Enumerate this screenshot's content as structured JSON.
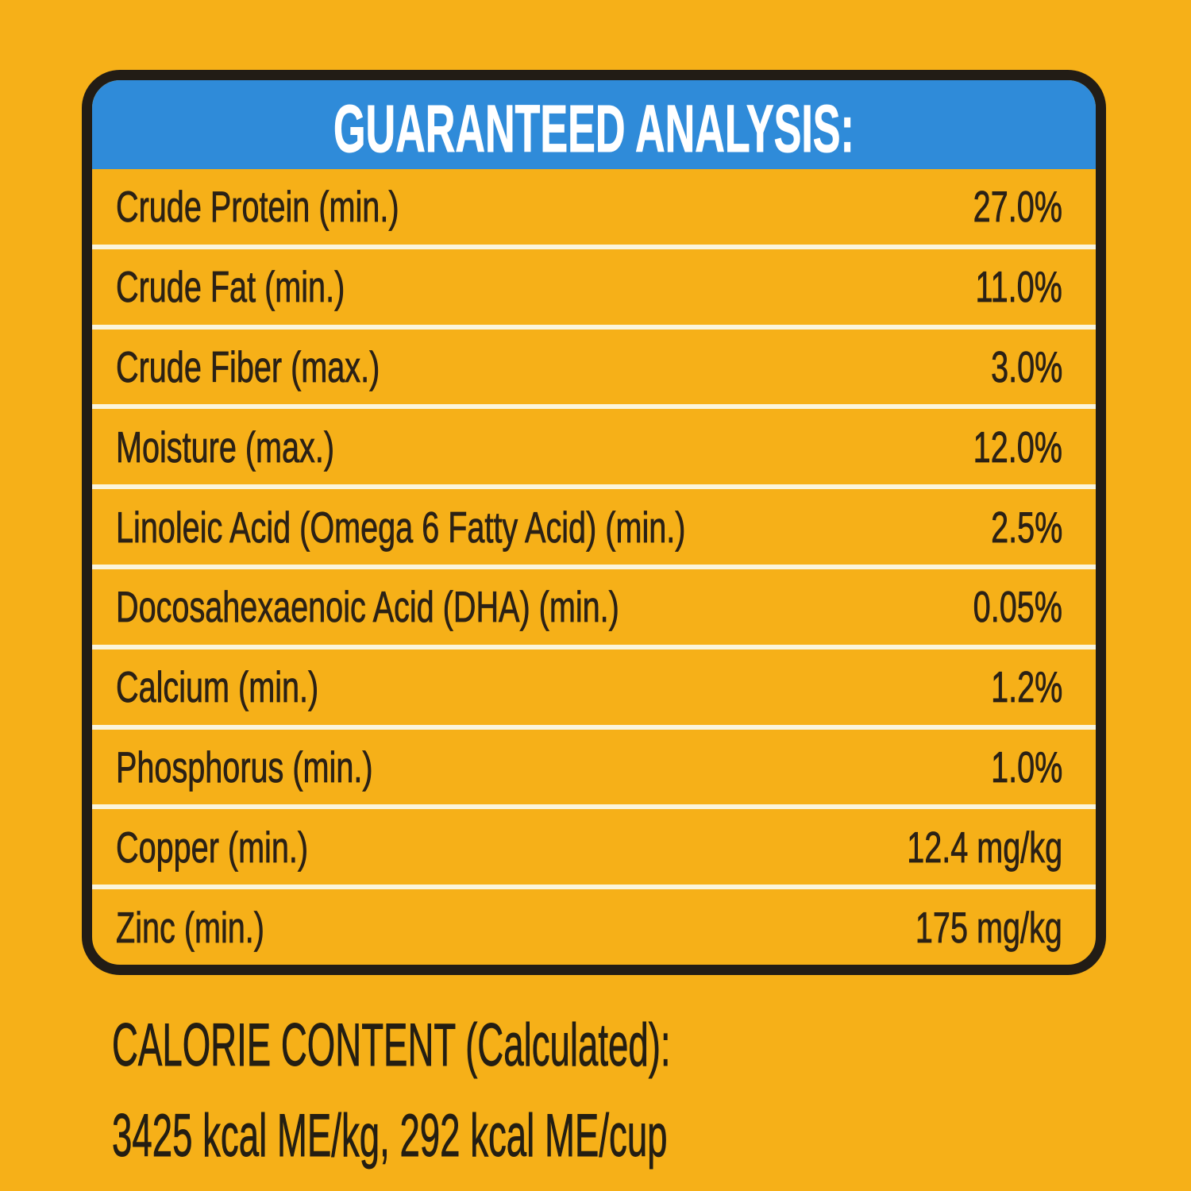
{
  "colors": {
    "background_yellow": "#F6B018",
    "header_blue": "#2F8BD9",
    "panel_border_black": "#221C15",
    "row_separator_cream": "#FBF5DC",
    "row_text_dark": "#2B2115",
    "header_text_white": "#FFFFFF"
  },
  "panel": {
    "title": "GUARANTEED ANALYSIS:",
    "rows": [
      {
        "label": "Crude Protein (min.)",
        "value": "27.0%"
      },
      {
        "label": "Crude Fat (min.)",
        "value": "11.0%"
      },
      {
        "label": "Crude Fiber (max.)",
        "value": "3.0%"
      },
      {
        "label": "Moisture (max.)",
        "value": "12.0%"
      },
      {
        "label": "Linoleic Acid (Omega 6 Fatty Acid) (min.)",
        "value": "2.5%"
      },
      {
        "label": "Docosahexaenoic Acid (DHA) (min.)",
        "value": "0.05%"
      },
      {
        "label": "Calcium (min.)",
        "value": "1.2%"
      },
      {
        "label": "Phosphorus (min.)",
        "value": "1.0%"
      },
      {
        "label": "Copper (min.)",
        "value": "12.4 mg/kg"
      },
      {
        "label": "Zinc (min.)",
        "value": "175 mg/kg"
      }
    ]
  },
  "calorie_content": {
    "heading": "CALORIE CONTENT (Calculated):",
    "values": "3425 kcal ME/kg, 292 kcal ME/cup"
  }
}
